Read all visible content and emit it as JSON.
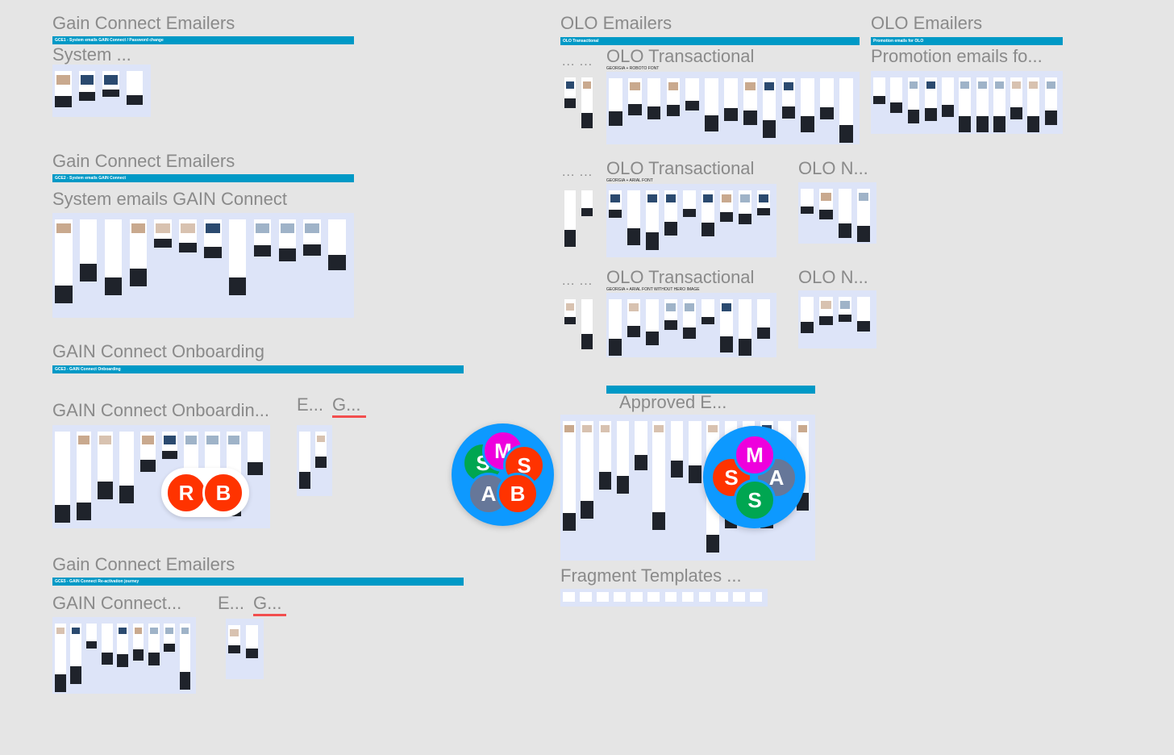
{
  "sections": {
    "gce1": {
      "title": "Gain Connect Emailers",
      "banner": "GCE1 - System emails GAIN Connect / Password change",
      "subtitle": "System ..."
    },
    "gce2": {
      "title": "Gain Connect Emailers",
      "banner": "GCE2 - System emails GAIN Connect",
      "subtitle": "System emails GAIN Connect"
    },
    "gce3": {
      "title": "GAIN Connect Onboarding",
      "banner": "GCE3 - GAIN Connect Onboarding",
      "subtitle": "GAIN Connect Onboardin...",
      "side_e": "E...",
      "side_g": "G..."
    },
    "gce5": {
      "title": "Gain Connect Emailers",
      "banner": "GCE5 - GAIN Connect Re-activation journey",
      "subtitle": "GAIN Connect...",
      "side_e": "E...",
      "side_g": "G..."
    },
    "olo": {
      "title": "OLO Emailers",
      "banner": "OLO Transactional",
      "dots": "... ...",
      "rows": [
        {
          "subtitle": "OLO Transactional",
          "label": "GEORGIA + ROBOTO FONT"
        },
        {
          "subtitle": "OLO Transactional",
          "label": "GEORGIA + ARIAL FONT",
          "side": "OLO N..."
        },
        {
          "subtitle": "OLO Transactional",
          "label": "GEORGIA + ARIAL FONT WITHOUT HERO IMAGE",
          "side": "OLO N..."
        }
      ]
    },
    "promo": {
      "title": "OLO Emailers",
      "banner": "Promotion emails for OLO",
      "subtitle": "Promotion emails fo..."
    },
    "approved": {
      "subtitle": "Approved E..."
    },
    "fragments": {
      "subtitle": "Fragment Templates ..."
    }
  },
  "collaborators": {
    "pill": [
      {
        "initial": "R",
        "color": "#ff3300"
      },
      {
        "initial": "B",
        "color": "#ff3300"
      }
    ],
    "stack1": [
      {
        "initial": "M",
        "color": "#ee00dd"
      },
      {
        "initial": "S",
        "color": "#00a651"
      },
      {
        "initial": "S",
        "color": "#ff3300"
      },
      {
        "initial": "A",
        "color": "#667799"
      },
      {
        "initial": "B",
        "color": "#ff3300"
      }
    ],
    "stack2": [
      {
        "initial": "M",
        "color": "#ee00dd"
      },
      {
        "initial": "S",
        "color": "#ff3300"
      },
      {
        "initial": "A",
        "color": "#667799"
      },
      {
        "initial": "S",
        "color": "#00a651"
      }
    ],
    "stack_color": "#0d99ff"
  },
  "colors": {
    "canvas": "#e5e5e5",
    "banner": "#0099c6",
    "frame": "#dde4f8"
  }
}
